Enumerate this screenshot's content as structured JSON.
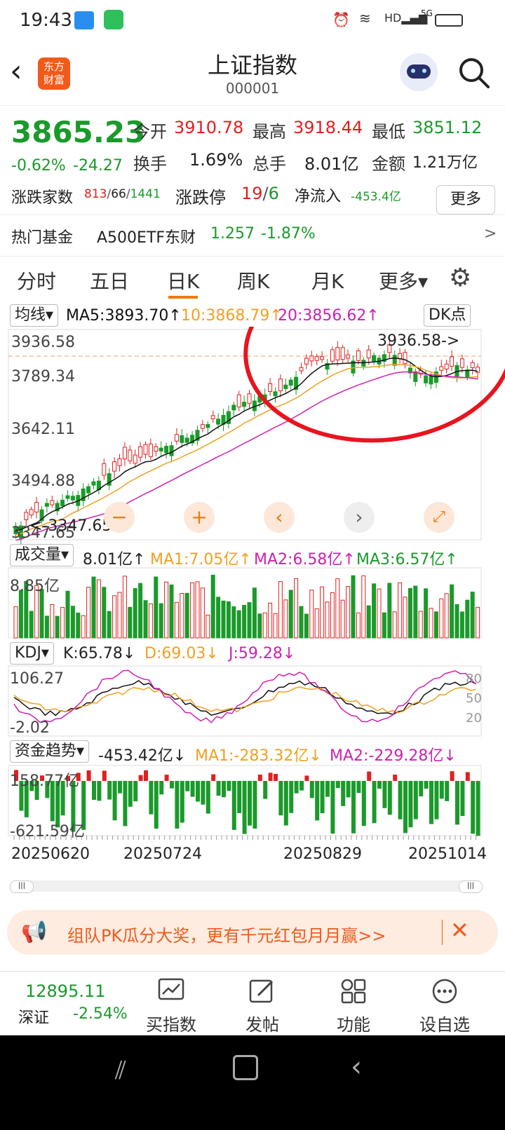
{
  "status_bar": {
    "time": "19:43",
    "network": "5G"
  },
  "header": {
    "title": "上证指数",
    "code": "000001",
    "logo_line1": "东方",
    "logo_line2": "财富"
  },
  "quote": {
    "price": "3865.23",
    "change_pct": "-0.62%",
    "change": "-24.27",
    "open_label": "今开",
    "open": "3910.78",
    "high_label": "最高",
    "high": "3918.44",
    "low_label": "最低",
    "low": "3851.12",
    "turnover_label": "换手",
    "turnover": "1.69%",
    "volume_label": "总手",
    "volume": "8.01亿",
    "amount_label": "金额",
    "amount": "1.21万亿",
    "breadth_label": "涨跌家数",
    "breadth_up": "813",
    "breadth_flat": "66",
    "breadth_down": "1441",
    "limit_label": "涨跌停",
    "limit_up": "19",
    "limit_down": "6",
    "netflow_label": "净流入",
    "netflow": "-453.4亿",
    "more_label": "更多"
  },
  "hot_fund": {
    "label": "热门基金",
    "name": "A500ETF东财",
    "price": "1.257",
    "change": "-1.87%",
    "arrow": ">"
  },
  "tabs": [
    {
      "label": "分时"
    },
    {
      "label": "五日"
    },
    {
      "label": "日K"
    },
    {
      "label": "周K"
    },
    {
      "label": "月K"
    },
    {
      "label": "更多▾"
    }
  ],
  "kline": {
    "ma_select": "均线▾",
    "ma5": "MA5:3893.70↑",
    "ma10": "10:3868.79↑",
    "ma20": "20:3856.62↑",
    "dk_label": "DK点",
    "y_labels": [
      "3936.58",
      "3789.34",
      "3642.11",
      "3494.88",
      "3347.65"
    ],
    "max_marker": "3936.58->",
    "min_marker": "<-3347.65"
  },
  "volume": {
    "select": "成交量▾",
    "value": "8.01亿↑",
    "ma1": "MA1:7.05亿↑",
    "ma2": "MA2:6.58亿↑",
    "ma3": "MA3:6.57亿↑",
    "y_label": "8.85亿"
  },
  "kdj": {
    "select": "KDJ▾",
    "k": "K:65.78↓",
    "d": "D:69.03↓",
    "j": "J:59.28↓",
    "y_top": "106.27",
    "y_bottom": "-2.02",
    "right_labels": [
      "80",
      "50",
      "20"
    ]
  },
  "funds": {
    "select": "资金趋势▾",
    "value": "-453.42亿↓",
    "ma1": "MA1:-283.32亿↓",
    "ma2": "MA2:-229.28亿↓",
    "y_top": "158.77亿",
    "y_bottom": "-621.59亿"
  },
  "dates": [
    "20250620",
    "20250724",
    "20250829",
    "20251014"
  ],
  "banner": {
    "text": "组队PK瓜分大奖，更有千元红包月月赢>>"
  },
  "bottom_nav": {
    "index_value": "12895.11",
    "index_name": "深证",
    "index_change": "-2.54%",
    "items": [
      {
        "label": "买指数"
      },
      {
        "label": "发帖"
      },
      {
        "label": "功能"
      },
      {
        "label": "设自选"
      }
    ]
  },
  "colors": {
    "up": "#e02020",
    "down": "#1a9a2a",
    "accent": "#f07a10",
    "ma5": "#111111",
    "ma10": "#f0a020",
    "ma20": "#d020b0"
  }
}
